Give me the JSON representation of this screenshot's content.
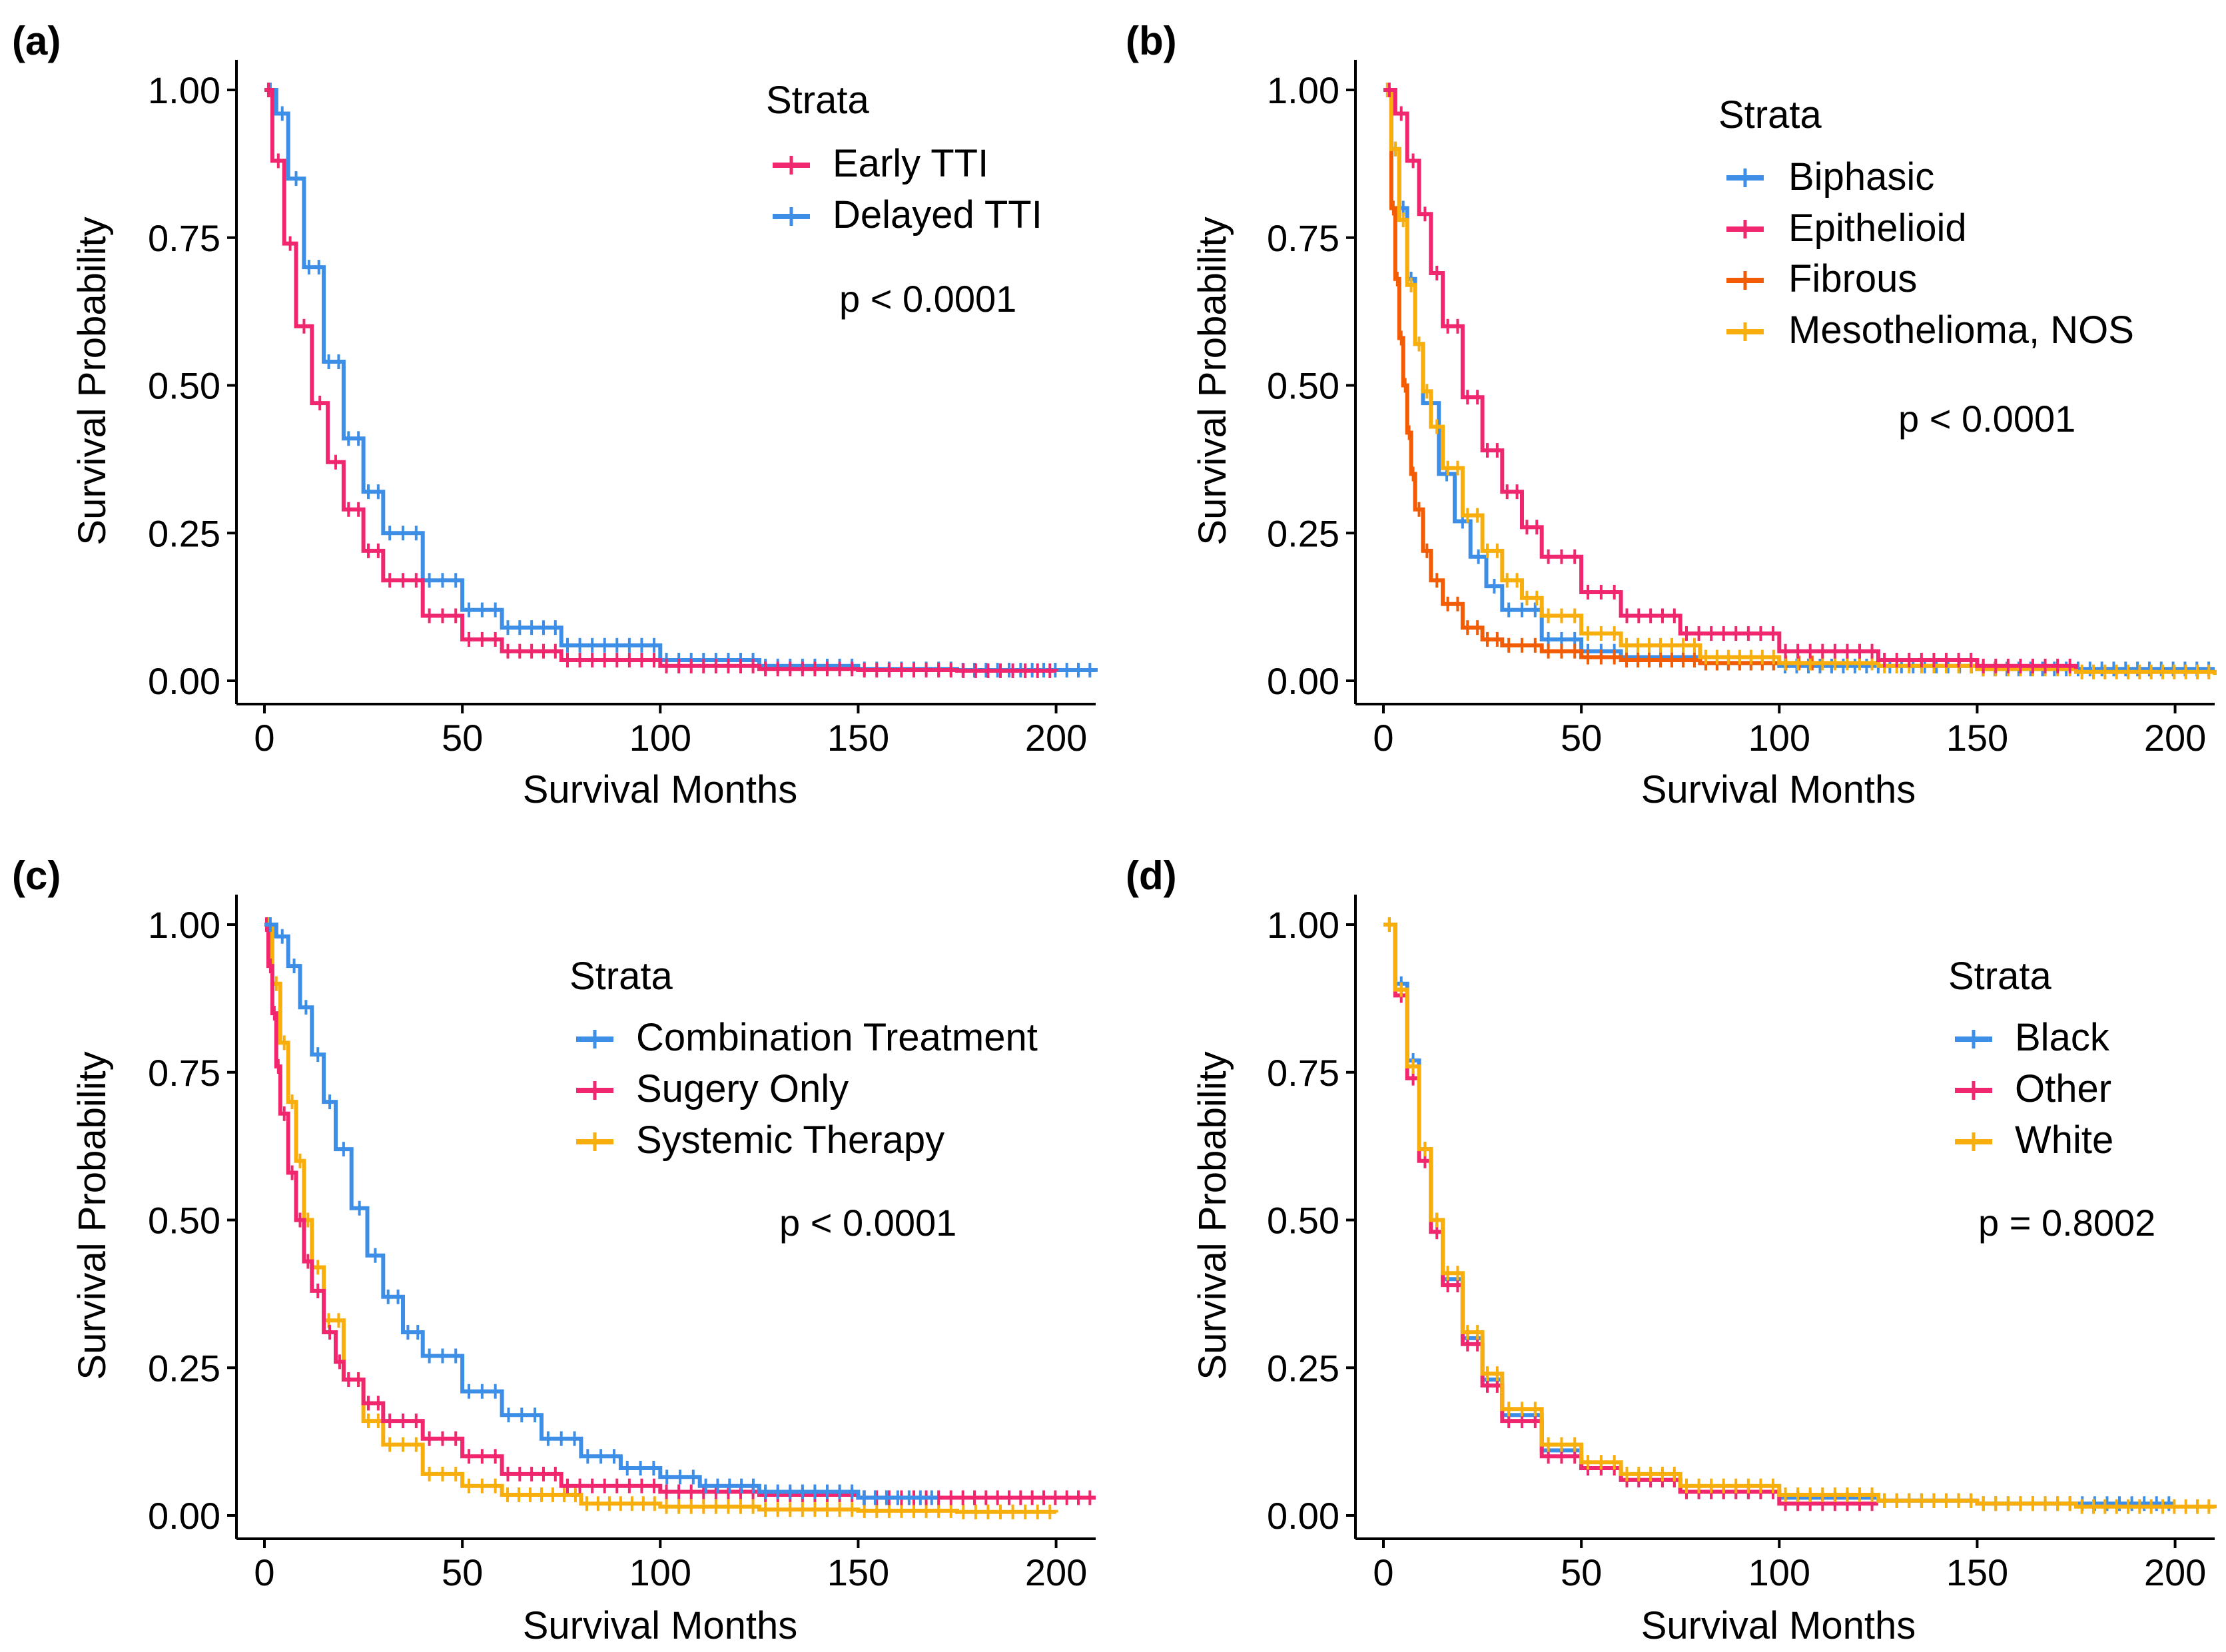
{
  "figure": {
    "colors": {
      "blue": "#3d8ee6",
      "pink": "#f0276f",
      "orange": "#f25c05",
      "yellow": "#f8ae0c"
    }
  },
  "chart_data": [
    {
      "type": "line",
      "panel_label": "(a)",
      "xlabel": "Survival Months",
      "ylabel": "Survival Probability",
      "xlim": [
        0,
        210
      ],
      "ylim": [
        0,
        1
      ],
      "xticks": [
        "0",
        "50",
        "100",
        "150",
        "200"
      ],
      "yticks": [
        "0.00",
        "0.25",
        "0.50",
        "0.75",
        "1.00"
      ],
      "legend_title": "Strata",
      "p_value": "p < 0.0001",
      "series": [
        {
          "name": "Delayed TTI",
          "color": "#3d8ee6",
          "x": [
            0,
            3,
            6,
            10,
            15,
            20,
            25,
            30,
            40,
            50,
            60,
            75,
            100,
            125,
            150,
            175,
            210
          ],
          "y": [
            1.0,
            0.96,
            0.85,
            0.7,
            0.54,
            0.41,
            0.32,
            0.25,
            0.17,
            0.12,
            0.09,
            0.06,
            0.035,
            0.025,
            0.02,
            0.018,
            0.015
          ]
        },
        {
          "name": "Early TTI",
          "color": "#f0276f",
          "x": [
            0,
            2,
            5,
            8,
            12,
            16,
            20,
            25,
            30,
            40,
            50,
            60,
            75,
            100,
            125,
            150,
            175,
            200
          ],
          "y": [
            1.0,
            0.88,
            0.74,
            0.6,
            0.47,
            0.37,
            0.29,
            0.22,
            0.17,
            0.11,
            0.07,
            0.05,
            0.035,
            0.025,
            0.02,
            0.018,
            0.017,
            0.016
          ]
        }
      ],
      "legend_order": [
        "Early TTI",
        "Delayed TTI"
      ]
    },
    {
      "type": "line",
      "panel_label": "(b)",
      "xlabel": "Survival Months",
      "ylabel": "Survival Probability",
      "xlim": [
        0,
        210
      ],
      "ylim": [
        0,
        1
      ],
      "xticks": [
        "0",
        "50",
        "100",
        "150",
        "200"
      ],
      "yticks": [
        "0.00",
        "0.25",
        "0.50",
        "0.75",
        "1.00"
      ],
      "legend_title": "Strata",
      "p_value": "p < 0.0001",
      "series": [
        {
          "name": "Biphasic",
          "color": "#3d8ee6",
          "x": [
            0,
            2,
            4,
            6,
            8,
            10,
            14,
            18,
            22,
            26,
            30,
            40,
            50,
            60,
            80,
            100,
            150,
            210
          ],
          "y": [
            1.0,
            0.9,
            0.8,
            0.68,
            0.57,
            0.47,
            0.35,
            0.27,
            0.21,
            0.16,
            0.12,
            0.07,
            0.05,
            0.04,
            0.03,
            0.025,
            0.02,
            0.02
          ]
        },
        {
          "name": "Fibrous",
          "color": "#f25c05",
          "x": [
            0,
            2,
            3,
            4,
            5,
            6,
            7,
            8,
            10,
            12,
            15,
            20,
            25,
            30,
            40,
            50,
            60,
            80,
            100,
            110
          ],
          "y": [
            1.0,
            0.8,
            0.68,
            0.58,
            0.5,
            0.42,
            0.35,
            0.29,
            0.22,
            0.17,
            0.13,
            0.09,
            0.07,
            0.06,
            0.05,
            0.04,
            0.035,
            0.03,
            0.03,
            0.03
          ]
        },
        {
          "name": "Mesothelioma, NOS",
          "color": "#f8ae0c",
          "x": [
            0,
            2,
            4,
            6,
            8,
            10,
            12,
            15,
            20,
            25,
            30,
            35,
            40,
            50,
            60,
            80,
            100,
            125,
            150,
            175,
            210
          ],
          "y": [
            1.0,
            0.9,
            0.78,
            0.67,
            0.57,
            0.49,
            0.43,
            0.36,
            0.28,
            0.22,
            0.17,
            0.14,
            0.11,
            0.08,
            0.06,
            0.04,
            0.03,
            0.025,
            0.02,
            0.015,
            0.01
          ]
        },
        {
          "name": "Epithelioid",
          "color": "#f0276f",
          "x": [
            0,
            3,
            6,
            9,
            12,
            15,
            20,
            25,
            30,
            35,
            40,
            50,
            60,
            75,
            100,
            125,
            150,
            175
          ],
          "y": [
            1.0,
            0.96,
            0.88,
            0.79,
            0.69,
            0.6,
            0.48,
            0.39,
            0.32,
            0.26,
            0.21,
            0.15,
            0.11,
            0.08,
            0.05,
            0.035,
            0.025,
            0.02
          ]
        }
      ],
      "legend_order": [
        "Biphasic",
        "Epithelioid",
        "Fibrous",
        "Mesothelioma, NOS"
      ]
    },
    {
      "type": "line",
      "panel_label": "(c)",
      "xlabel": "Survival Months",
      "ylabel": "Survival Probability",
      "xlim": [
        0,
        210
      ],
      "ylim": [
        0,
        1
      ],
      "xticks": [
        "0",
        "50",
        "100",
        "150",
        "200"
      ],
      "yticks": [
        "0.00",
        "0.25",
        "0.50",
        "0.75",
        "1.00"
      ],
      "legend_title": "Strata",
      "p_value": "p < 0.0001",
      "series": [
        {
          "name": "Systemic Therapy",
          "color": "#f8ae0c",
          "x": [
            0,
            2,
            4,
            6,
            8,
            10,
            12,
            15,
            20,
            25,
            30,
            40,
            50,
            60,
            80,
            100,
            125,
            150,
            175,
            200
          ],
          "y": [
            1.0,
            0.9,
            0.8,
            0.7,
            0.6,
            0.5,
            0.42,
            0.33,
            0.23,
            0.16,
            0.12,
            0.07,
            0.05,
            0.035,
            0.02,
            0.015,
            0.01,
            0.008,
            0.006,
            0.005
          ]
        },
        {
          "name": "Sugery Only",
          "color": "#f0276f",
          "x": [
            0,
            1,
            2,
            3,
            4,
            6,
            8,
            10,
            12,
            15,
            18,
            20,
            25,
            30,
            40,
            50,
            60,
            75,
            100,
            125,
            150,
            175,
            210
          ],
          "y": [
            1.0,
            0.93,
            0.85,
            0.76,
            0.68,
            0.58,
            0.5,
            0.43,
            0.38,
            0.31,
            0.26,
            0.23,
            0.19,
            0.16,
            0.13,
            0.1,
            0.07,
            0.05,
            0.04,
            0.035,
            0.03,
            0.03,
            0.03
          ]
        },
        {
          "name": "Combination Treatment",
          "color": "#3d8ee6",
          "x": [
            0,
            3,
            6,
            9,
            12,
            15,
            18,
            22,
            26,
            30,
            35,
            40,
            50,
            60,
            70,
            80,
            90,
            100,
            110,
            125,
            150,
            170
          ],
          "y": [
            1.0,
            0.98,
            0.93,
            0.86,
            0.78,
            0.7,
            0.62,
            0.52,
            0.44,
            0.37,
            0.31,
            0.27,
            0.21,
            0.17,
            0.13,
            0.1,
            0.08,
            0.065,
            0.05,
            0.04,
            0.03,
            0.03
          ]
        }
      ],
      "legend_order": [
        "Combination Treatment",
        "Sugery Only",
        "Systemic Therapy"
      ]
    },
    {
      "type": "line",
      "panel_label": "(d)",
      "xlabel": "Survival Months",
      "ylabel": "Survival Probability",
      "xlim": [
        0,
        210
      ],
      "ylim": [
        0,
        1
      ],
      "xticks": [
        "0",
        "50",
        "100",
        "150",
        "200"
      ],
      "yticks": [
        "0.00",
        "0.25",
        "0.50",
        "0.75",
        "1.00"
      ],
      "legend_title": "Strata",
      "p_value": "p = 0.8002",
      "series": [
        {
          "name": "Black",
          "color": "#3d8ee6",
          "x": [
            0,
            3,
            6,
            9,
            12,
            15,
            20,
            25,
            30,
            40,
            50,
            60,
            75,
            100,
            125,
            150,
            175,
            200
          ],
          "y": [
            1.0,
            0.9,
            0.77,
            0.62,
            0.5,
            0.4,
            0.3,
            0.23,
            0.17,
            0.11,
            0.08,
            0.06,
            0.04,
            0.03,
            0.025,
            0.02,
            0.02,
            0.02
          ]
        },
        {
          "name": "Other",
          "color": "#f0276f",
          "x": [
            0,
            3,
            6,
            9,
            12,
            15,
            20,
            25,
            30,
            40,
            50,
            60,
            75,
            100,
            125
          ],
          "y": [
            1.0,
            0.88,
            0.74,
            0.6,
            0.48,
            0.39,
            0.29,
            0.22,
            0.16,
            0.1,
            0.08,
            0.06,
            0.04,
            0.02,
            0.02
          ]
        },
        {
          "name": "White",
          "color": "#f8ae0c",
          "x": [
            0,
            3,
            6,
            9,
            12,
            15,
            20,
            25,
            30,
            40,
            50,
            60,
            75,
            100,
            125,
            150,
            175,
            210
          ],
          "y": [
            1.0,
            0.89,
            0.76,
            0.62,
            0.5,
            0.41,
            0.31,
            0.24,
            0.18,
            0.12,
            0.09,
            0.07,
            0.05,
            0.035,
            0.025,
            0.02,
            0.015,
            0.012
          ]
        }
      ],
      "legend_order": [
        "Black",
        "Other",
        "White"
      ]
    }
  ]
}
